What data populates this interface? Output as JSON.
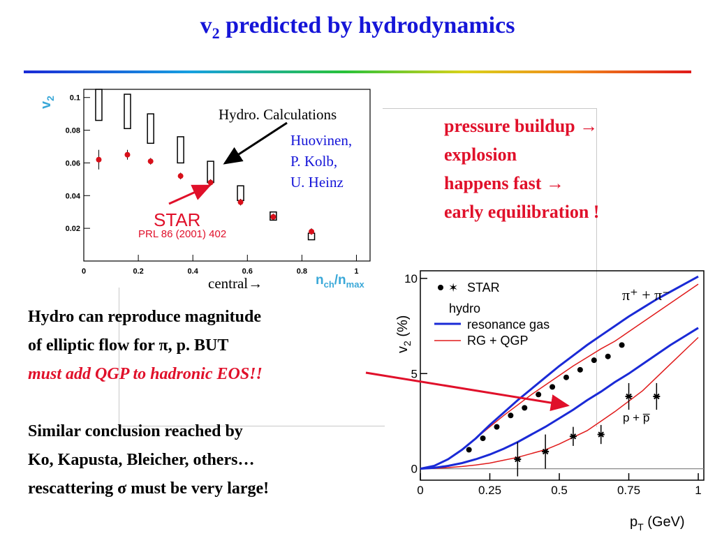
{
  "slide": {
    "title_main": "v",
    "title_sub": "2",
    "title_rest": " predicted by hydrodynamics",
    "red_points": [
      "pressure buildup →",
      "explosion",
      "happens fast →",
      "early equilibration !"
    ],
    "body1": [
      "Hydro can reproduce magnitude",
      "of elliptic flow for π, p. BUT"
    ],
    "body1_red": "must add QGP to hadronic EOS!!",
    "body2": [
      "Similar conclusion reached by",
      "Ko, Kapusta, Bleicher, others…",
      "rescattering σ must be very large!"
    ],
    "colors": {
      "title": "#1515d8",
      "emphasis": "#e0102a",
      "hydro_blue": "#1a2ad6",
      "hydro_red": "#e01a1a"
    }
  },
  "chart_data": [
    {
      "type": "scatter",
      "ylabel": "v₂",
      "xlabel": "n_ch/n_max",
      "ylabel_main": "v",
      "ylabel_sub": "2",
      "xlabel_main": "n",
      "xlabel_sub1": "ch",
      "xlabel_mid": "/n",
      "xlabel_sub2": "max",
      "xlim": [
        0,
        1.05
      ],
      "ylim": [
        0,
        0.105
      ],
      "xticks": [
        0,
        0.2,
        0.4,
        0.6,
        0.8,
        1
      ],
      "xtick_labels": [
        "0",
        "0.2",
        "0.4",
        "0.6",
        "0.8",
        "1"
      ],
      "yticks": [
        0.02,
        0.04,
        0.06,
        0.08,
        0.1
      ],
      "ytick_labels": [
        "0.02",
        "0.04",
        "0.06",
        "0.08",
        "0.1"
      ],
      "star": {
        "x": [
          0.055,
          0.16,
          0.245,
          0.355,
          0.465,
          0.575,
          0.695,
          0.835
        ],
        "y": [
          0.062,
          0.065,
          0.061,
          0.052,
          0.048,
          0.036,
          0.027,
          0.018
        ],
        "err": [
          0.006,
          0.003,
          0.002,
          0.002,
          0.002,
          0.002,
          0.002,
          0.002
        ]
      },
      "hydro_boxes": {
        "x": [
          0.055,
          0.16,
          0.245,
          0.355,
          0.465,
          0.575,
          0.695,
          0.835
        ],
        "low": [
          0.086,
          0.081,
          0.072,
          0.06,
          0.048,
          0.037,
          0.025,
          0.013
        ],
        "high": [
          0.105,
          0.102,
          0.09,
          0.076,
          0.061,
          0.046,
          0.03,
          0.017
        ]
      },
      "annotations": {
        "hydro_label": "Hydro. Calculations",
        "authors": [
          "Huovinen,",
          "P. Kolb,",
          "U. Heinz"
        ],
        "star_label": "STAR",
        "reference": "PRL 86 (2001) 402",
        "central": "central→"
      }
    },
    {
      "type": "line",
      "xlabel": "p_T (GeV)",
      "ylabel": "v₂ (%)",
      "xlabel_main": "p",
      "xlabel_sub": "T",
      "xlabel_unit": " (GeV)",
      "ylabel_main": "v",
      "ylabel_sub": "2",
      "ylabel_unit": " (%)",
      "xlim": [
        0,
        1.02
      ],
      "ylim": [
        -0.6,
        10.4
      ],
      "xticks": [
        0,
        0.25,
        0.5,
        0.75,
        1
      ],
      "xtick_labels": [
        "0",
        "0.25",
        "0.5",
        "0.75",
        "1"
      ],
      "yticks": [
        0,
        5,
        10
      ],
      "ytick_labels": [
        "0",
        "5",
        "10"
      ],
      "legend": {
        "star": "STAR",
        "hydro": "hydro",
        "resonance_gas": "resonance gas",
        "rg_qgp": "RG + QGP",
        "pions": "π⁺ + π⁻",
        "protons": "p + p̅"
      },
      "pion_star": {
        "x": [
          0.175,
          0.225,
          0.275,
          0.325,
          0.375,
          0.425,
          0.475,
          0.525,
          0.575,
          0.625,
          0.675,
          0.725
        ],
        "y": [
          1.0,
          1.6,
          2.2,
          2.8,
          3.2,
          3.9,
          4.3,
          4.8,
          5.2,
          5.7,
          5.9,
          6.5
        ]
      },
      "proton_star": {
        "x": [
          0.35,
          0.45,
          0.55,
          0.65,
          0.75,
          0.85
        ],
        "y": [
          0.5,
          0.9,
          1.7,
          1.8,
          3.8,
          3.8
        ],
        "err": [
          0.9,
          0.9,
          0.5,
          0.5,
          0.7,
          0.7
        ]
      },
      "curves": {
        "x": [
          0,
          0.05,
          0.1,
          0.15,
          0.2,
          0.25,
          0.3,
          0.35,
          0.4,
          0.45,
          0.5,
          0.55,
          0.6,
          0.65,
          0.7,
          0.75,
          0.8,
          0.85,
          0.9,
          0.95,
          1.0
        ],
        "pion_resonance_gas": [
          0,
          0.15,
          0.5,
          1.0,
          1.6,
          2.3,
          2.95,
          3.6,
          4.2,
          4.8,
          5.4,
          5.95,
          6.5,
          7.0,
          7.5,
          8.0,
          8.45,
          8.9,
          9.3,
          9.7,
          10.1
        ],
        "pion_rg_qgp": [
          0,
          0.15,
          0.5,
          1.0,
          1.6,
          2.2,
          2.8,
          3.35,
          3.9,
          4.4,
          4.9,
          5.4,
          5.85,
          6.3,
          6.7,
          7.2,
          7.7,
          8.2,
          8.7,
          9.2,
          9.7
        ],
        "proton_resonance_gas": [
          0,
          0.05,
          0.15,
          0.3,
          0.5,
          0.75,
          1.05,
          1.4,
          1.8,
          2.2,
          2.65,
          3.1,
          3.6,
          4.05,
          4.55,
          5.0,
          5.5,
          6.0,
          6.5,
          6.95,
          7.4
        ],
        "proton_rg_qgp": [
          0,
          0.02,
          0.06,
          0.12,
          0.2,
          0.3,
          0.45,
          0.6,
          0.8,
          1.0,
          1.3,
          1.65,
          2.0,
          2.5,
          3.0,
          3.55,
          4.1,
          4.8,
          5.5,
          6.2,
          6.9
        ]
      }
    }
  ]
}
